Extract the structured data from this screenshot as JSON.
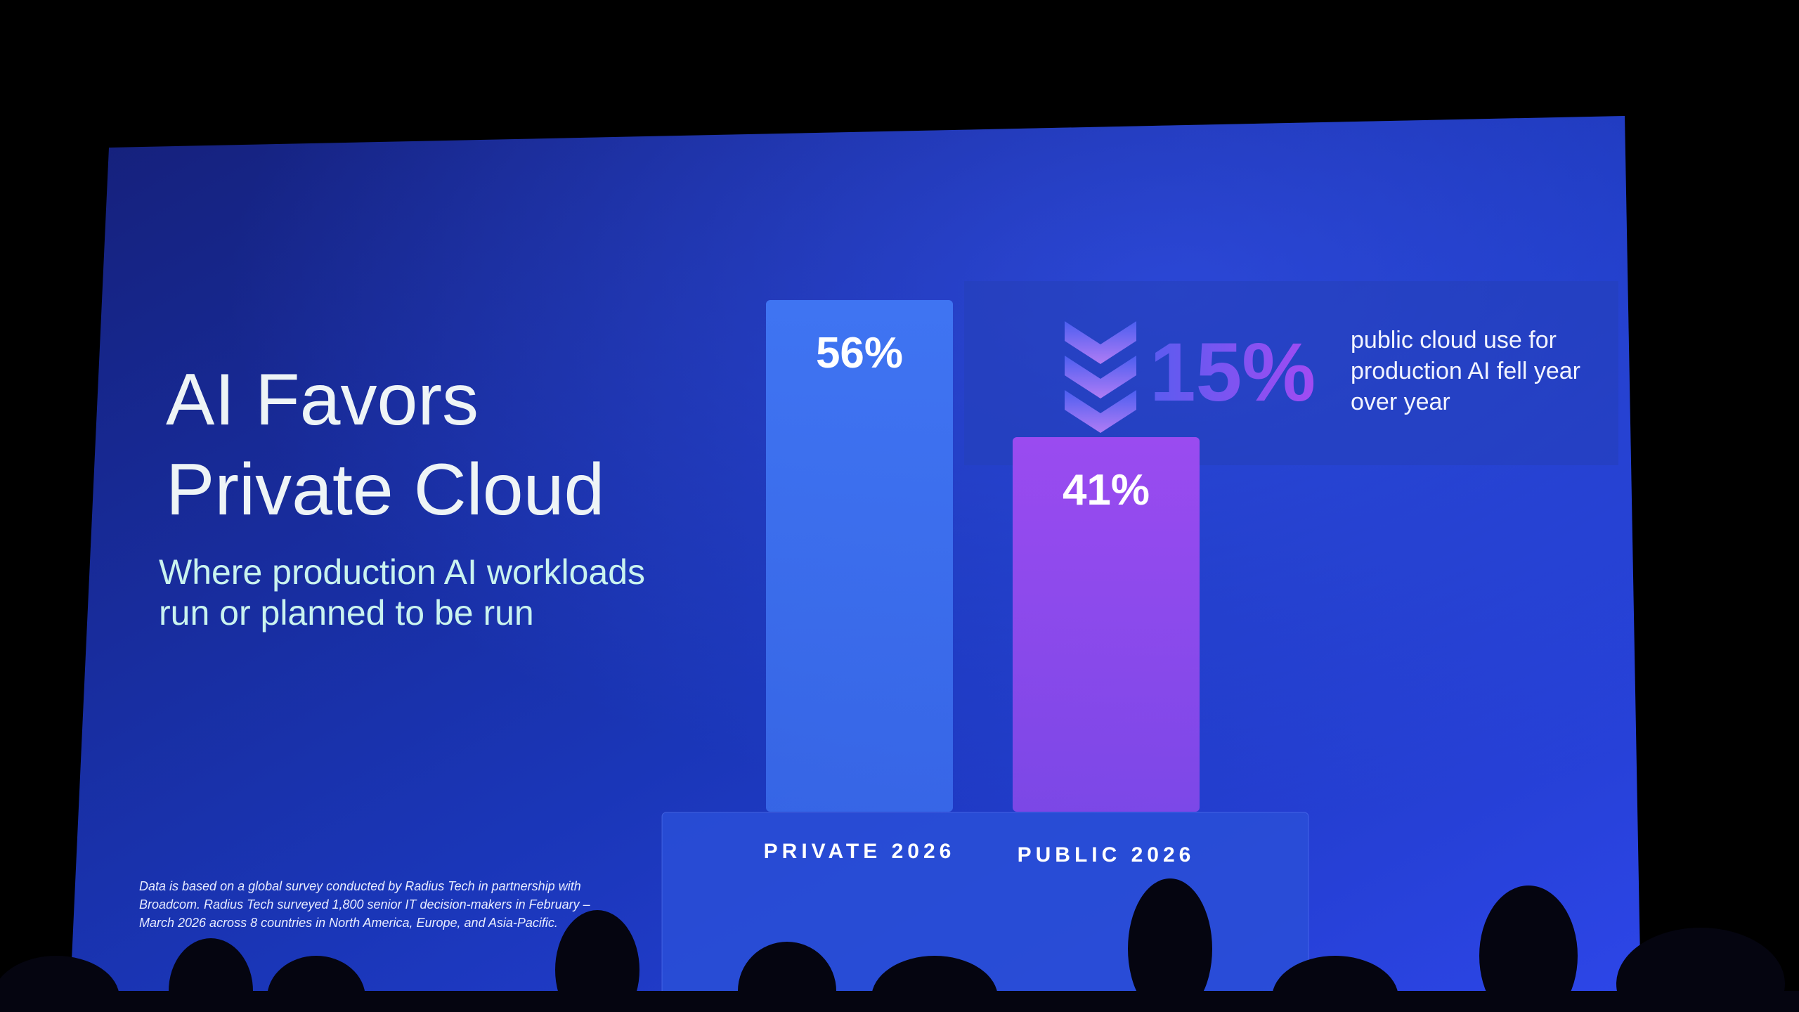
{
  "chart_data": {
    "type": "bar",
    "title": "AI Favors Private Cloud",
    "subtitle": "Where production AI workloads run or planned to be run",
    "categories": [
      "PRIVATE 2026",
      "PUBLIC 2026"
    ],
    "values": [
      56,
      41
    ],
    "value_labels": [
      "56%",
      "41%"
    ],
    "colors": [
      "#3f74f2",
      "#9a4bf0"
    ],
    "callout": {
      "label": "15%",
      "text": "public cloud use for production AI fell year over year"
    },
    "footnote": "Data is based on a global survey conducted by Radius Tech in partnership with Broadcom. Radius Tech surveyed 1,800 senior IT decision-makers in February – March 2026 across 8 countries in North America, Europe, and Asia-Pacific."
  }
}
